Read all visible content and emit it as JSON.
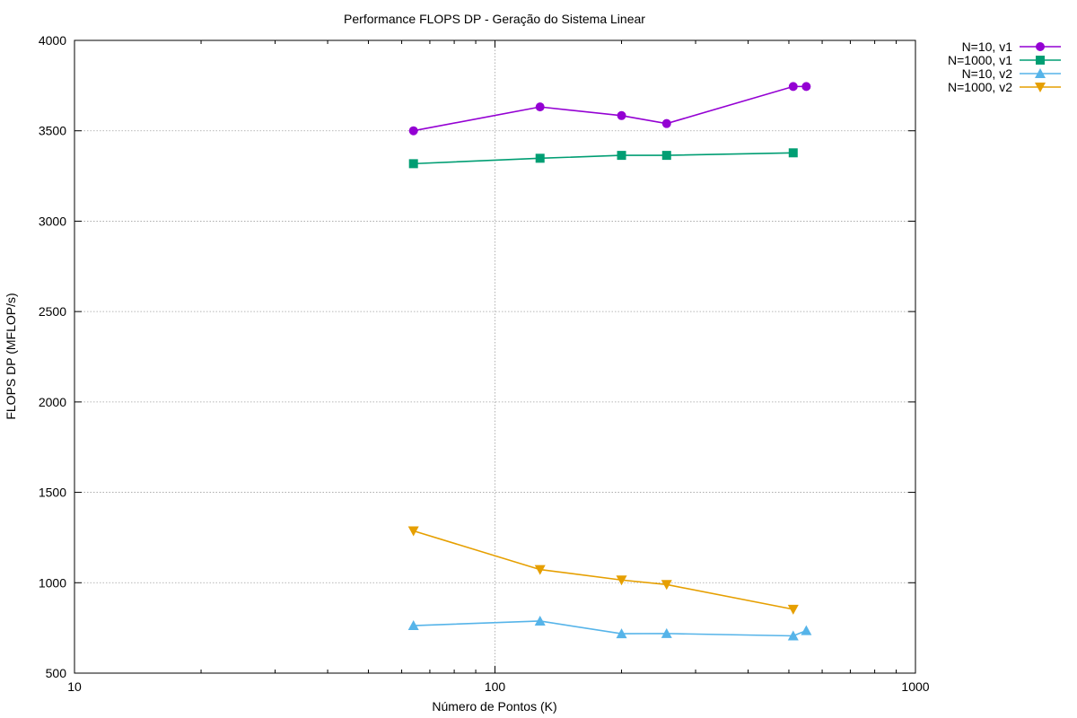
{
  "chart_data": {
    "type": "line",
    "title": "Performance FLOPS DP - Geração do Sistema Linear",
    "xlabel": "Número de Pontos (K)",
    "ylabel": "FLOPS DP (MFLOP/s)",
    "xscale": "log",
    "xlim": [
      10,
      1000
    ],
    "ylim": [
      500,
      4000
    ],
    "x_ticks": [
      10,
      100,
      1000
    ],
    "x_tick_labels": [
      "10",
      "100",
      "1000"
    ],
    "y_ticks": [
      500,
      1000,
      1500,
      2000,
      2500,
      3000,
      3500,
      4000
    ],
    "y_tick_labels": [
      "500",
      "1000",
      "1500",
      "2000",
      "2500",
      "3000",
      "3500",
      "4000"
    ],
    "grid": true,
    "legend_position": "top-right outside",
    "series": [
      {
        "name": "N=10, v1",
        "color": "#9400d3",
        "marker": "circle",
        "x": [
          64,
          128,
          200,
          256,
          512,
          550
        ],
        "y": [
          3500,
          3632,
          3584,
          3540,
          3745,
          3745
        ]
      },
      {
        "name": "N=1000, v1",
        "color": "#009e73",
        "marker": "square",
        "x": [
          64,
          128,
          200,
          256,
          512
        ],
        "y": [
          3318,
          3348,
          3364,
          3364,
          3378
        ]
      },
      {
        "name": "N=10, v2",
        "color": "#56b4e9",
        "marker": "triangle-up",
        "x": [
          64,
          128,
          200,
          256,
          512,
          550
        ],
        "y": [
          763,
          788,
          718,
          719,
          706,
          735
        ]
      },
      {
        "name": "N=1000, v2",
        "color": "#e69f00",
        "marker": "triangle-down",
        "x": [
          64,
          128,
          200,
          256,
          512
        ],
        "y": [
          1287,
          1073,
          1015,
          990,
          853
        ]
      }
    ]
  }
}
